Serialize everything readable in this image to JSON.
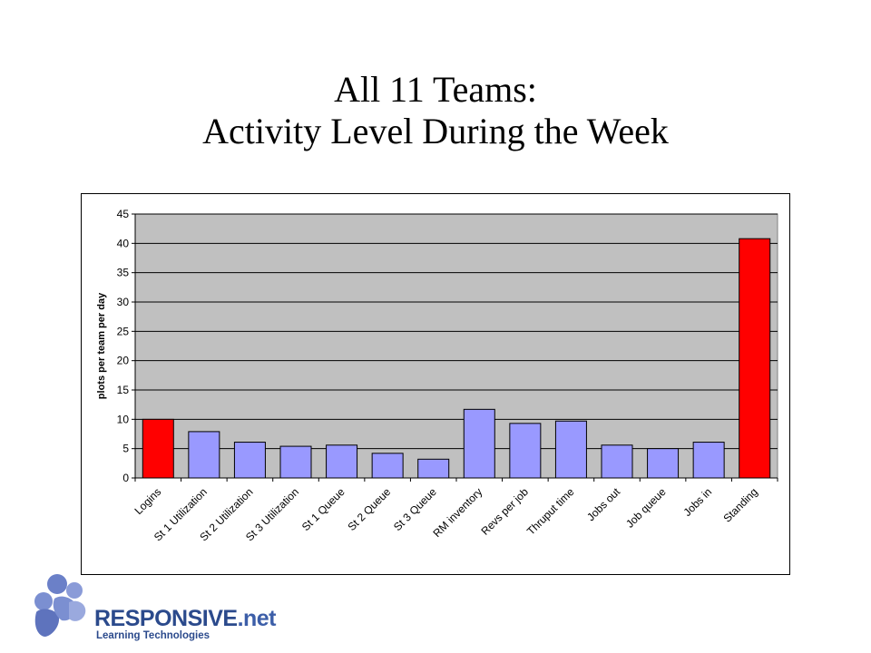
{
  "slide": {
    "title_line1": "All 11 Teams:",
    "title_line2": "Activity Level During the Week"
  },
  "logo": {
    "brand": "RESPONSIVE",
    "suffix": ".net",
    "subtitle": "Learning Technologies"
  },
  "chart_data": {
    "type": "bar",
    "title": "",
    "xlabel": "",
    "ylabel": "plots per team per day",
    "ylim": [
      0,
      45
    ],
    "yticks": [
      0,
      5,
      10,
      15,
      20,
      25,
      30,
      35,
      40,
      45
    ],
    "grid": true,
    "legend": "none",
    "categories": [
      "Logins",
      "St 1 Utilization",
      "St 2 Utilization",
      "St 3 Utilization",
      "St 1 Queue",
      "St 2 Queue",
      "St 3 Queue",
      "RM inventory",
      "Revs per job",
      "Thruput time",
      "Jobs out",
      "Job queue",
      "Jobs in",
      "Standing"
    ],
    "values": [
      10.0,
      7.9,
      6.1,
      5.4,
      5.6,
      4.2,
      3.2,
      11.7,
      9.3,
      9.7,
      5.6,
      5.0,
      6.1,
      40.8
    ],
    "colors": [
      "#ff0000",
      "#9999ff",
      "#9999ff",
      "#9999ff",
      "#9999ff",
      "#9999ff",
      "#9999ff",
      "#9999ff",
      "#9999ff",
      "#9999ff",
      "#9999ff",
      "#9999ff",
      "#9999ff",
      "#ff0000"
    ],
    "plot_background": "#c0c0c0"
  }
}
